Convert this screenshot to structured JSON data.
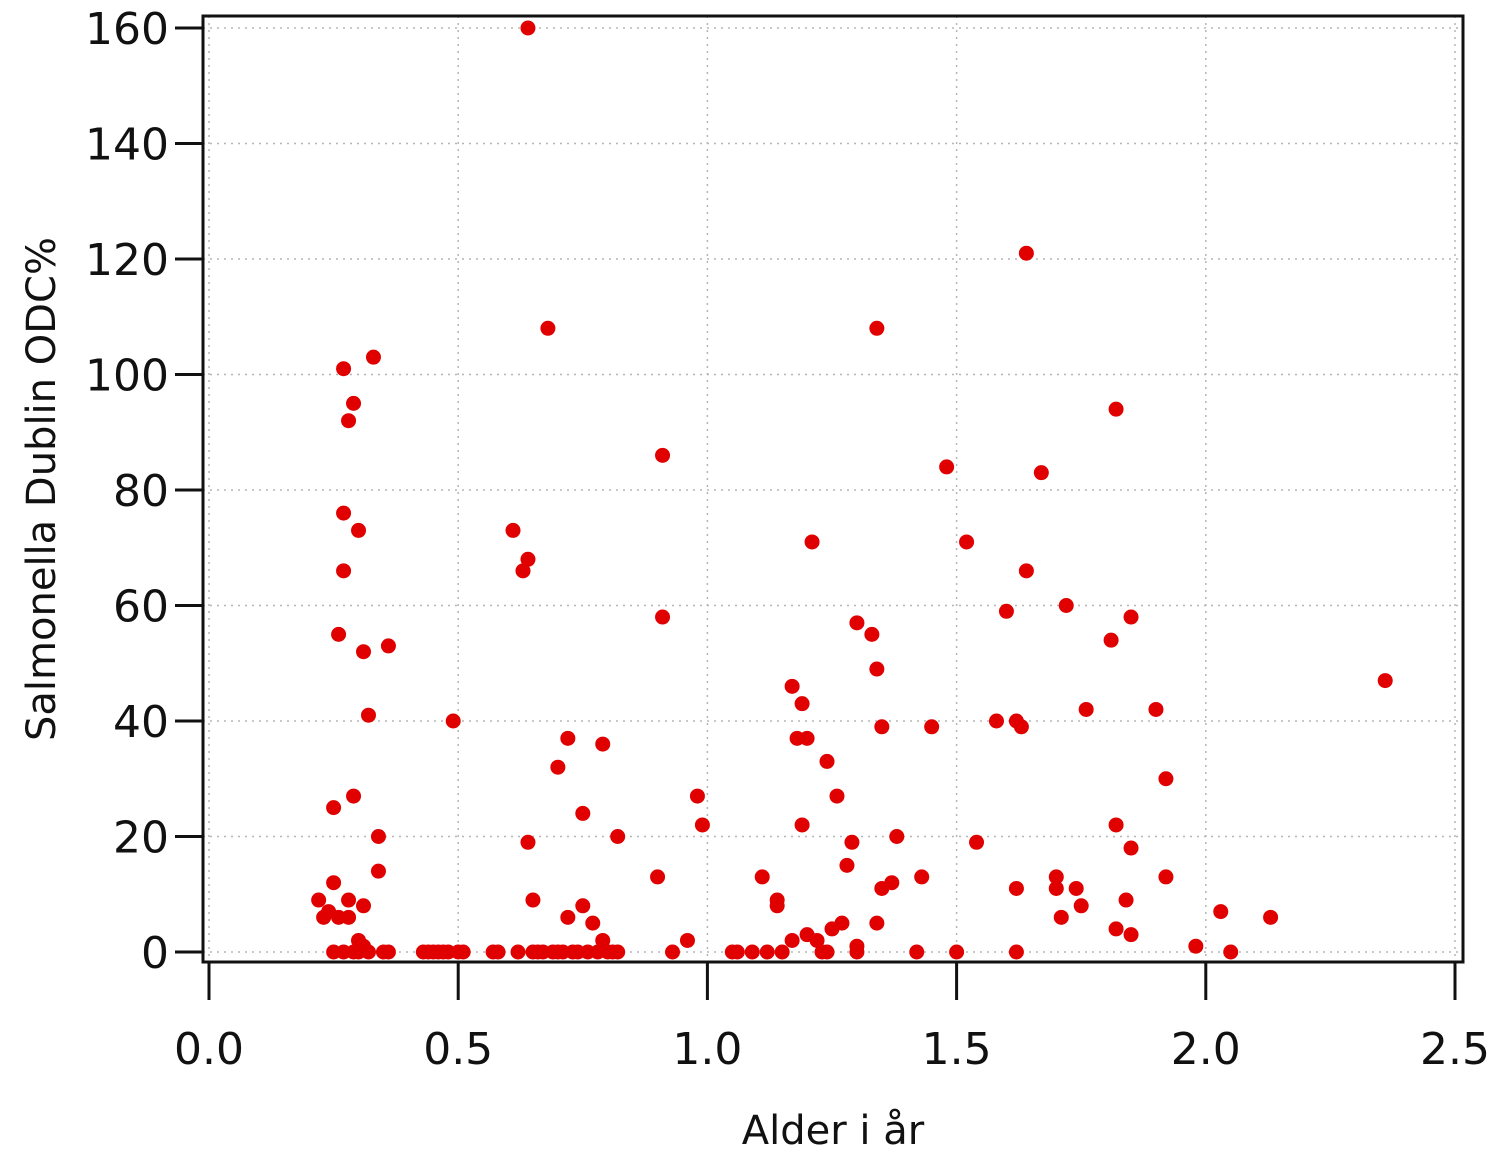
{
  "chart_data": {
    "type": "scatter",
    "title": "",
    "xlabel": "Alder i år",
    "ylabel": "Salmonella Dublin ODC%",
    "xlim": [
      0.0,
      2.5
    ],
    "ylim": [
      0,
      160
    ],
    "xticks": [
      "0.0",
      "0.5",
      "1.0",
      "1.5",
      "2.0",
      "2.5"
    ],
    "yticks": [
      "0",
      "20",
      "40",
      "60",
      "80",
      "100",
      "120",
      "140",
      "160"
    ],
    "grid": true,
    "marker_color": "#e00000",
    "series": [
      {
        "x": [
          0.22,
          0.23,
          0.24,
          0.25,
          0.25,
          0.25,
          0.26,
          0.26,
          0.27,
          0.27,
          0.27,
          0.27,
          0.28,
          0.28,
          0.28,
          0.29,
          0.29,
          0.29,
          0.3,
          0.3,
          0.3,
          0.31,
          0.31,
          0.31,
          0.32,
          0.32,
          0.33,
          0.34,
          0.34,
          0.35,
          0.36,
          0.36,
          0.43,
          0.44,
          0.45,
          0.46,
          0.47,
          0.48,
          0.49,
          0.5,
          0.51,
          0.57,
          0.58,
          0.61,
          0.62,
          0.63,
          0.64,
          0.64,
          0.64,
          0.65,
          0.65,
          0.66,
          0.67,
          0.68,
          0.69,
          0.7,
          0.7,
          0.71,
          0.72,
          0.72,
          0.73,
          0.74,
          0.75,
          0.75,
          0.76,
          0.77,
          0.78,
          0.79,
          0.79,
          0.8,
          0.81,
          0.82,
          0.82,
          0.9,
          0.91,
          0.91,
          0.93,
          0.96,
          0.98,
          0.99,
          1.05,
          1.06,
          1.09,
          1.11,
          1.12,
          1.14,
          1.14,
          1.15,
          1.17,
          1.17,
          1.18,
          1.19,
          1.19,
          1.2,
          1.2,
          1.21,
          1.22,
          1.23,
          1.24,
          1.24,
          1.25,
          1.26,
          1.27,
          1.28,
          1.29,
          1.3,
          1.3,
          1.3,
          1.33,
          1.34,
          1.34,
          1.34,
          1.35,
          1.35,
          1.37,
          1.38,
          1.42,
          1.43,
          1.45,
          1.48,
          1.5,
          1.52,
          1.54,
          1.58,
          1.6,
          1.62,
          1.62,
          1.62,
          1.63,
          1.64,
          1.64,
          1.67,
          1.7,
          1.7,
          1.71,
          1.72,
          1.74,
          1.75,
          1.76,
          1.81,
          1.82,
          1.82,
          1.82,
          1.84,
          1.85,
          1.85,
          1.85,
          1.9,
          1.92,
          1.92,
          1.98,
          2.03,
          2.05,
          2.13,
          2.36
        ],
        "y": [
          9,
          6,
          7,
          0,
          12,
          25,
          6,
          55,
          0,
          101,
          76,
          66,
          9,
          92,
          6,
          0,
          95,
          27,
          2,
          73,
          0,
          1,
          52,
          8,
          41,
          0,
          103,
          14,
          20,
          0,
          53,
          0,
          0,
          0,
          0,
          0,
          0,
          0,
          40,
          0,
          0,
          0,
          0,
          73,
          0,
          66,
          19,
          68,
          160,
          9,
          0,
          0,
          0,
          108,
          0,
          32,
          0,
          0,
          37,
          6,
          0,
          0,
          24,
          8,
          0,
          5,
          0,
          36,
          2,
          0,
          0,
          20,
          0,
          13,
          86,
          58,
          0,
          2,
          27,
          22,
          0,
          0,
          0,
          13,
          0,
          8,
          9,
          0,
          46,
          2,
          37,
          43,
          22,
          3,
          37,
          71,
          2,
          0,
          0,
          33,
          4,
          27,
          5,
          15,
          19,
          57,
          1,
          0,
          55,
          49,
          108,
          5,
          39,
          11,
          12,
          20,
          0,
          13,
          39,
          84,
          0,
          71,
          19,
          40,
          59,
          11,
          40,
          0,
          39,
          66,
          121,
          83,
          13,
          11,
          6,
          60,
          11,
          8,
          42,
          54,
          94,
          22,
          4,
          9,
          58,
          18,
          3,
          42,
          30,
          13,
          1,
          7,
          0,
          6,
          47
        ]
      }
    ]
  }
}
